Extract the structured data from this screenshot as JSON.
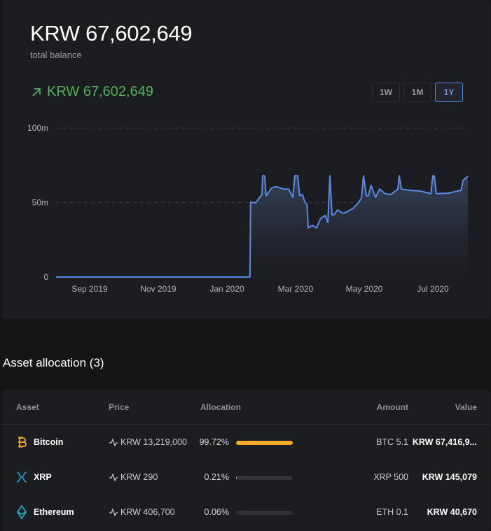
{
  "header": {
    "balance": "KRW 67,602,649",
    "balance_label": "total balance",
    "change": "KRW 67,602,649",
    "change_icon": "arrow-up-right-icon",
    "change_color": "#52b05a"
  },
  "ranges": [
    {
      "label": "1W",
      "active": false
    },
    {
      "label": "1M",
      "active": false
    },
    {
      "label": "1Y",
      "active": true
    }
  ],
  "chart_data": {
    "type": "area",
    "x_unit": "months from Sep 2019",
    "xlim": [
      -0.98,
      11.02
    ],
    "ylim": [
      0,
      100
    ],
    "y_ticks": [
      {
        "v": 0,
        "label": "0"
      },
      {
        "v": 50,
        "label": "50m"
      },
      {
        "v": 100,
        "label": "100m"
      }
    ],
    "x_ticks": [
      {
        "v": 0,
        "label": "Sep 2019"
      },
      {
        "v": 2,
        "label": "Nov 2019"
      },
      {
        "v": 4,
        "label": "Jan 2020"
      },
      {
        "v": 6,
        "label": "Mar 2020"
      },
      {
        "v": 8,
        "label": "May 2020"
      },
      {
        "v": 10,
        "label": "Jul 2020"
      }
    ],
    "grid": "dashed horizontal",
    "color": "#5b8ae6",
    "series": [
      {
        "name": "balance (m KRW)",
        "points": [
          [
            -0.98,
            0
          ],
          [
            4.67,
            0
          ],
          [
            4.69,
            50.2
          ],
          [
            4.84,
            49.8
          ],
          [
            4.94,
            53
          ],
          [
            5.02,
            55.4
          ],
          [
            5.04,
            68
          ],
          [
            5.1,
            68
          ],
          [
            5.14,
            54.5
          ],
          [
            5.31,
            60
          ],
          [
            5.45,
            60.6
          ],
          [
            5.65,
            59
          ],
          [
            5.8,
            59
          ],
          [
            5.92,
            53.5
          ],
          [
            5.98,
            68
          ],
          [
            6.06,
            68
          ],
          [
            6.12,
            54.5
          ],
          [
            6.2,
            55.4
          ],
          [
            6.27,
            50.2
          ],
          [
            6.33,
            48.8
          ],
          [
            6.37,
            33
          ],
          [
            6.49,
            34.7
          ],
          [
            6.61,
            33
          ],
          [
            6.73,
            39.4
          ],
          [
            6.86,
            41.3
          ],
          [
            6.94,
            36.6
          ],
          [
            7.0,
            68
          ],
          [
            7.06,
            41.8
          ],
          [
            7.12,
            41.8
          ],
          [
            7.22,
            45
          ],
          [
            7.39,
            42.7
          ],
          [
            7.51,
            44
          ],
          [
            7.67,
            46
          ],
          [
            7.84,
            50.2
          ],
          [
            7.92,
            53
          ],
          [
            7.98,
            68
          ],
          [
            8.06,
            54.5
          ],
          [
            8.12,
            54.5
          ],
          [
            8.2,
            61.5
          ],
          [
            8.33,
            53.5
          ],
          [
            8.45,
            59
          ],
          [
            8.61,
            55.9
          ],
          [
            8.78,
            55.4
          ],
          [
            8.98,
            59
          ],
          [
            9.02,
            68
          ],
          [
            9.08,
            59
          ],
          [
            9.33,
            58.2
          ],
          [
            9.63,
            57.7
          ],
          [
            9.94,
            55.9
          ],
          [
            10.0,
            68
          ],
          [
            10.04,
            68
          ],
          [
            10.1,
            55.9
          ],
          [
            10.45,
            56.3
          ],
          [
            10.82,
            58.2
          ],
          [
            10.88,
            64.8
          ],
          [
            11.02,
            67.6
          ]
        ]
      }
    ]
  },
  "allocation": {
    "title": "Asset allocation (3)",
    "headers": {
      "asset": "Asset",
      "price": "Price",
      "allocation": "Allocation",
      "amount": "Amount",
      "value": "Value"
    },
    "rows": [
      {
        "name": "Bitcoin",
        "icon": "bitcoin-icon",
        "icon_color": "#f6a929",
        "price": "KRW 13,219,000",
        "pct": "99.72%",
        "fill": 99.72,
        "amount": "BTC 5.1",
        "value": "KRW 67,416,9..."
      },
      {
        "name": "XRP",
        "icon": "xrp-icon",
        "icon_color": "#2a9fd6",
        "price": "KRW 290",
        "pct": "0.21%",
        "fill": 0.21,
        "amount": "XRP 500",
        "value": "KRW 145,079"
      },
      {
        "name": "Ethereum",
        "icon": "ethereum-icon",
        "icon_color": "#27b5c9",
        "price": "KRW 406,700",
        "pct": "0.06%",
        "fill": 0.06,
        "amount": "ETH 0.1",
        "value": "KRW 40,670"
      }
    ]
  }
}
